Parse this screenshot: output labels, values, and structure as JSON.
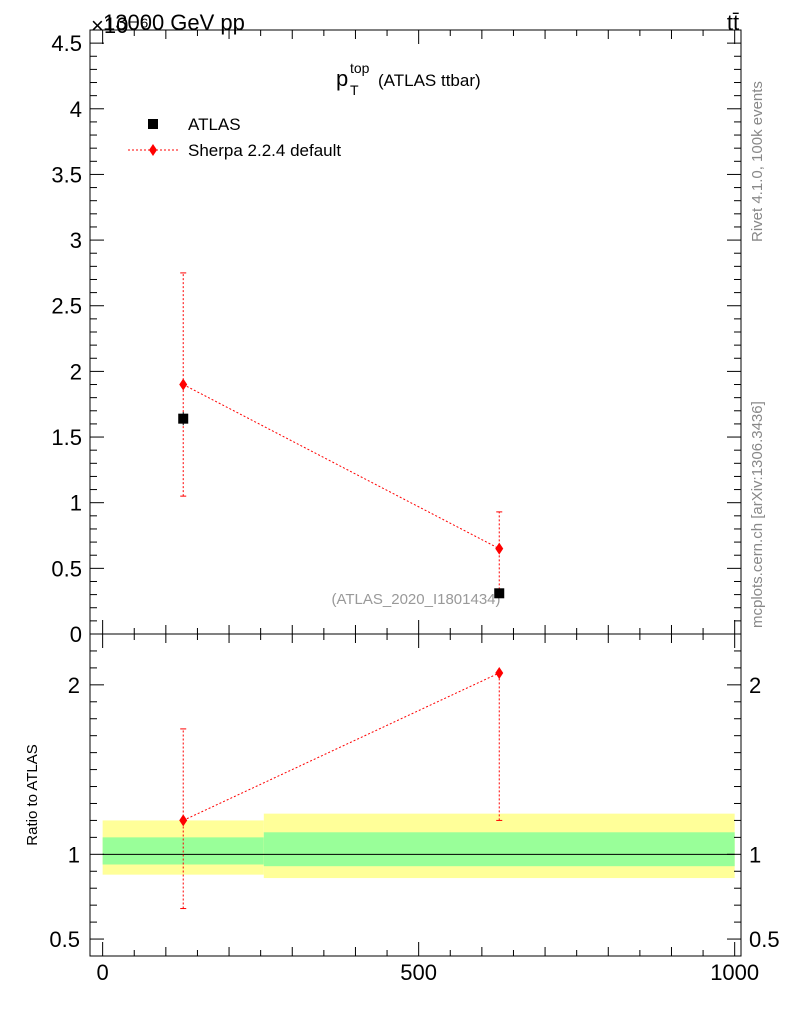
{
  "header": {
    "left": "13000 GeV pp",
    "right": "tt̄",
    "y_exponent": "×10⁻⁶"
  },
  "side_text": {
    "rivet": "Rivet 4.1.0,  100k events",
    "mcplots": "mcplots.cern.ch [arXiv:1306.3436]"
  },
  "chart_data": [
    {
      "type": "scatter",
      "title": "p_T^top (ATLAS ttbar)",
      "title_base": "p",
      "title_sub": "T",
      "title_sup": "top",
      "title_rest": "(ATLAS ttbar)",
      "watermark": "(ATLAS_2020_I1801434)",
      "xlim": [
        -20,
        1010
      ],
      "ylim": [
        0,
        4.6
      ],
      "y_ticks": [
        0,
        0.5,
        1,
        1.5,
        2,
        2.5,
        3,
        3.5,
        4,
        4.5
      ],
      "y_tick_labels": [
        "0",
        "0.5",
        "1",
        "1.5",
        "2",
        "2.5",
        "3",
        "3.5",
        "4",
        "4.5"
      ],
      "legend_position": "top-left",
      "series": [
        {
          "name": "ATLAS",
          "marker": "square",
          "color": "#000000",
          "x": [
            127.5,
            627.5
          ],
          "y": [
            1.64,
            0.31
          ],
          "yerr_low": [
            0.05,
            0.02
          ],
          "yerr_high": [
            0.05,
            0.02
          ]
        },
        {
          "name": "Sherpa 2.2.4 default",
          "marker": "diamond",
          "color": "#ff0000",
          "x": [
            127.5,
            627.5
          ],
          "y": [
            1.9,
            0.65
          ],
          "yerr_low": [
            0.85,
            0.31
          ],
          "yerr_high": [
            0.85,
            0.28
          ]
        }
      ]
    },
    {
      "type": "line",
      "ylabel": "Ratio to ATLAS",
      "xlim": [
        -20,
        1010
      ],
      "ylim": [
        0.4,
        2.3
      ],
      "x_ticks": [
        0,
        500,
        1000
      ],
      "x_tick_labels": [
        "0",
        "500",
        "1000"
      ],
      "y_ticks": [
        0.5,
        1,
        2
      ],
      "y_tick_labels": [
        "0.5",
        "1",
        "2"
      ],
      "bands": [
        {
          "xmin": 0,
          "xmax": 255,
          "yellow": [
            0.88,
            1.2
          ],
          "green": [
            0.94,
            1.1
          ]
        },
        {
          "xmin": 255,
          "xmax": 1000,
          "yellow": [
            0.86,
            1.24
          ],
          "green": [
            0.93,
            1.13
          ]
        }
      ],
      "reference_line": 1,
      "band_colors": {
        "yellow": "#ffff99",
        "green": "#99ff99"
      },
      "series": [
        {
          "name": "Sherpa 2.2.4 default",
          "color": "#ff0000",
          "x": [
            127.5,
            627.5
          ],
          "y": [
            1.2,
            2.07
          ],
          "yerr_low": [
            0.52,
            0.87
          ],
          "yerr_high": [
            0.54,
            0.0
          ]
        }
      ]
    }
  ]
}
